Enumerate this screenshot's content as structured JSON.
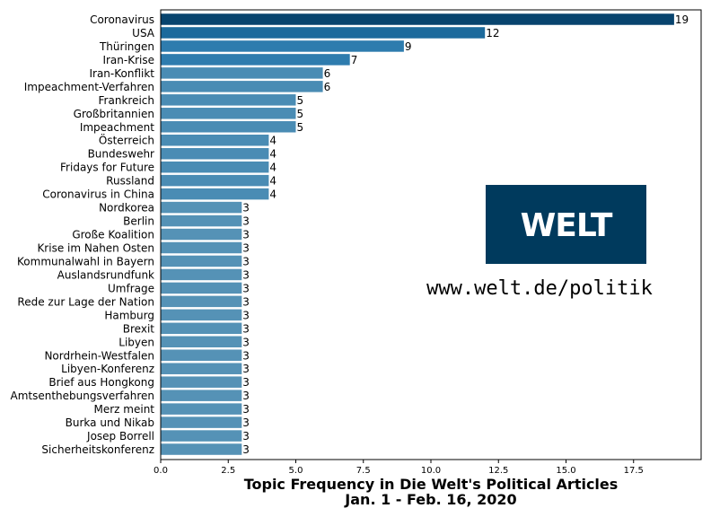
{
  "chart_data": {
    "type": "bar",
    "orientation": "horizontal",
    "categories": [
      "Coronavirus",
      "USA",
      "Thüringen",
      "Iran-Krise",
      "Iran-Konflikt",
      "Impeachment-Verfahren",
      "Frankreich",
      "Großbritannien",
      "Impeachment",
      "Österreich",
      "Bundeswehr",
      "Fridays for Future",
      "Russland",
      "Coronavirus in China",
      "Nordkorea",
      "Berlin",
      "Große Koalition",
      "Krise im Nahen Osten",
      "Kommunalwahl in Bayern",
      "Auslandsrundfunk",
      "Umfrage",
      "Rede zur Lage der Nation",
      "Hamburg",
      "Brexit",
      "Libyen",
      "Nordrhein-Westfalen",
      "Libyen-Konferenz",
      "Brief aus Hongkong",
      "Amtsenthebungsverfahren",
      "Merz meint",
      "Burka und Nikab",
      "Josep Borrell",
      "Sicherheitskonferenz"
    ],
    "values": [
      19,
      12,
      9,
      7,
      6,
      6,
      5,
      5,
      5,
      4,
      4,
      4,
      4,
      4,
      3,
      3,
      3,
      3,
      3,
      3,
      3,
      3,
      3,
      3,
      3,
      3,
      3,
      3,
      3,
      3,
      3,
      3,
      3
    ],
    "title": "Topic Frequency in Die Welt's Political Articles",
    "subtitle": "Jan. 1 - Feb. 16, 2020",
    "xlabel": "",
    "ylabel": "",
    "xlim": [
      0,
      20
    ],
    "xticks": [
      0.0,
      2.5,
      5.0,
      7.5,
      10.0,
      12.5,
      15.0,
      17.5
    ],
    "xtick_labels": [
      "0.0",
      "2.5",
      "5.0",
      "7.5",
      "10.0",
      "12.5",
      "15.0",
      "17.5"
    ],
    "grid": false,
    "legend": "none",
    "colors": {
      "darkest": "#08446e",
      "dark": "#1c6a9c",
      "mid": "#2e7cae",
      "light": "#4a8cb4",
      "lighter": "#5592b6"
    }
  },
  "logo": {
    "text": "WELT",
    "background": "#003a5d"
  },
  "url_text": "www.welt.de/politik"
}
